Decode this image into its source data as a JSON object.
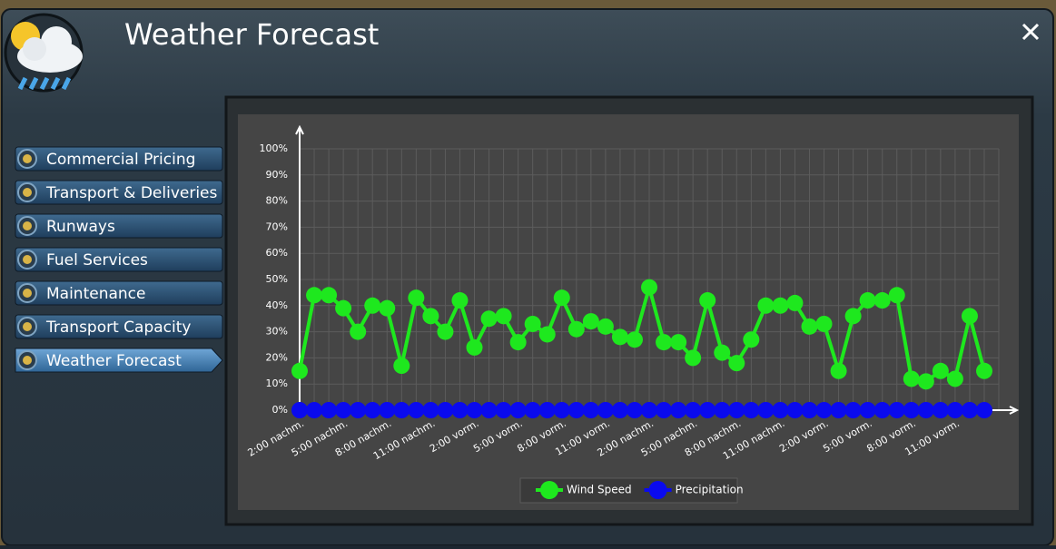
{
  "header": {
    "title": "Weather Forecast"
  },
  "menu": {
    "items": [
      {
        "label": "Commercial Pricing"
      },
      {
        "label": "Transport & Deliveries"
      },
      {
        "label": "Runways"
      },
      {
        "label": "Fuel Services"
      },
      {
        "label": "Maintenance"
      },
      {
        "label": "Transport Capacity"
      },
      {
        "label": "Weather Forecast",
        "active": true
      }
    ]
  },
  "chart_data": {
    "type": "line",
    "categories": [
      "2:00 nachm.",
      null,
      null,
      "5:00 nachm.",
      null,
      null,
      "8:00 nachm.",
      null,
      null,
      "11:00 nachm.",
      null,
      null,
      "2:00 vorm.",
      null,
      null,
      "5:00 vorm.",
      null,
      null,
      "8:00 vorm.",
      null,
      null,
      "11:00 vorm.",
      null,
      null,
      "2:00 nachm.",
      null,
      null,
      "5:00 nachm.",
      null,
      null,
      "8:00 nachm.",
      null,
      null,
      "11:00 nachm.",
      null,
      null,
      "2:00 vorm.",
      null,
      null,
      "5:00 vorm.",
      null,
      null,
      "8:00 vorm.",
      null,
      null,
      "11:00 vorm.",
      null,
      null
    ],
    "series": [
      {
        "name": "Wind Speed",
        "color": "#1ee81e",
        "values": [
          15,
          44,
          44,
          39,
          30,
          40,
          39,
          17,
          43,
          36,
          30,
          42,
          24,
          35,
          36,
          26,
          33,
          29,
          43,
          31,
          34,
          32,
          28,
          27,
          47,
          26,
          26,
          20,
          42,
          22,
          18,
          27,
          40,
          40,
          41,
          32,
          33,
          15,
          36,
          42,
          42,
          44,
          12,
          11,
          15,
          12,
          36,
          15
        ]
      },
      {
        "name": "Precipitation",
        "color": "#0a0aee",
        "values": [
          0,
          0,
          0,
          0,
          0,
          0,
          0,
          0,
          0,
          0,
          0,
          0,
          0,
          0,
          0,
          0,
          0,
          0,
          0,
          0,
          0,
          0,
          0,
          0,
          0,
          0,
          0,
          0,
          0,
          0,
          0,
          0,
          0,
          0,
          0,
          0,
          0,
          0,
          0,
          0,
          0,
          0,
          0,
          0,
          0,
          0,
          0,
          0
        ]
      }
    ],
    "ylim": [
      0,
      100
    ],
    "yticks": [
      {
        "value": 0,
        "label": "0%"
      },
      {
        "value": 10,
        "label": "10%"
      },
      {
        "value": 20,
        "label": "20%"
      },
      {
        "value": 30,
        "label": "30%"
      },
      {
        "value": 40,
        "label": "40%"
      },
      {
        "value": 50,
        "label": "50%"
      },
      {
        "value": 60,
        "label": "60%"
      },
      {
        "value": 70,
        "label": "70%"
      },
      {
        "value": 80,
        "label": "80%"
      },
      {
        "value": 90,
        "label": "90%"
      },
      {
        "value": 100,
        "label": "100%"
      }
    ],
    "grid": true,
    "legend": "bottom"
  }
}
